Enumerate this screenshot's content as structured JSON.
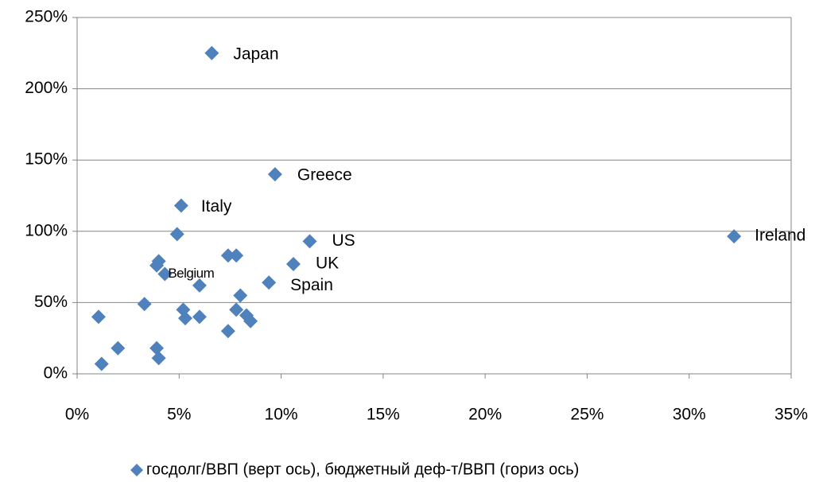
{
  "chart_data": {
    "type": "scatter",
    "series": [
      {
        "name": "госдолг/ВВП (верт ось), бюджетный деф-т/ВВП (гориз ось)",
        "color": "#4f81bd",
        "x": [
          6.6,
          9.7,
          5.1,
          32.2,
          11.4,
          10.6,
          9.4,
          4.3,
          4.9,
          7.4,
          7.8,
          3.9,
          4.0,
          6.0,
          8.0,
          3.3,
          5.2,
          7.8,
          8.3,
          8.5,
          5.3,
          6.0,
          1.05,
          7.4,
          2.0,
          3.9,
          4.0,
          1.2
        ],
        "values": [
          225,
          140,
          118,
          96.5,
          93,
          77,
          64,
          70,
          98,
          83,
          83,
          76,
          79,
          62,
          55,
          49,
          45,
          45,
          41,
          37,
          39,
          40,
          40,
          30,
          18,
          18,
          11,
          7
        ],
        "point_labels": [
          "Japan",
          "Greece",
          "Italy",
          "Ireland",
          "US",
          "UK",
          "Spain",
          "Belgium",
          null,
          null,
          null,
          null,
          null,
          null,
          null,
          null,
          null,
          null,
          null,
          null,
          null,
          null,
          null,
          null,
          null,
          null,
          null,
          null
        ]
      }
    ],
    "xlim": [
      0,
      35
    ],
    "xticks": [
      {
        "value": 0,
        "label": "0%"
      },
      {
        "value": 5,
        "label": "5%"
      },
      {
        "value": 10,
        "label": "10%"
      },
      {
        "value": 15,
        "label": "15%"
      },
      {
        "value": 20,
        "label": "20%"
      },
      {
        "value": 25,
        "label": "25%"
      },
      {
        "value": 30,
        "label": "30%"
      },
      {
        "value": 35,
        "label": "35%"
      }
    ],
    "ylim": [
      0,
      250
    ],
    "yticks": [
      {
        "value": 0,
        "label": "0%"
      },
      {
        "value": 50,
        "label": "50%"
      },
      {
        "value": 100,
        "label": "100%"
      },
      {
        "value": 150,
        "label": "150%"
      },
      {
        "value": 200,
        "label": "200%"
      },
      {
        "value": 250,
        "label": "250%"
      }
    ],
    "grid": true,
    "legend": "bottom"
  }
}
